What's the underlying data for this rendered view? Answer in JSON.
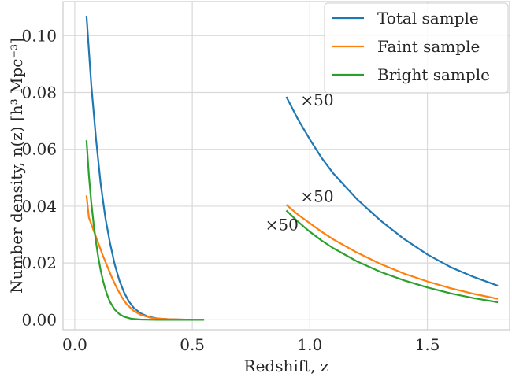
{
  "chart_data": {
    "type": "line",
    "title": "",
    "xlabel": "Redshift, z",
    "ylabel": "Number density, n(z) [h³ Mpc⁻³]",
    "xlim": [
      -0.05,
      1.85
    ],
    "ylim": [
      -0.0035,
      0.112
    ],
    "x_ticks": [
      0.0,
      0.5,
      1.0,
      1.5
    ],
    "x_tick_labels": [
      "0.0",
      "0.5",
      "1.0",
      "1.5"
    ],
    "y_ticks": [
      0.0,
      0.02,
      0.04,
      0.06,
      0.08,
      0.1
    ],
    "y_tick_labels": [
      "0.00",
      "0.02",
      "0.04",
      "0.06",
      "0.08",
      "0.10"
    ],
    "grid": true,
    "legend_position": "top-right",
    "annotations": [
      {
        "text": "×50",
        "x": 0.96,
        "y": 0.0755
      },
      {
        "text": "×50",
        "x": 0.96,
        "y": 0.0415
      },
      {
        "text": "×50",
        "x": 0.81,
        "y": 0.0315
      }
    ],
    "series": [
      {
        "name": "Total sample",
        "color": "#1f77b4",
        "segments": [
          {
            "x": [
              0.05,
              0.07,
              0.09,
              0.11,
              0.13,
              0.15,
              0.17,
              0.19,
              0.21,
              0.23,
              0.25,
              0.28,
              0.31,
              0.35,
              0.4,
              0.45,
              0.5,
              0.55
            ],
            "y": [
              0.107,
              0.083,
              0.064,
              0.048,
              0.036,
              0.027,
              0.0195,
              0.0138,
              0.0096,
              0.0065,
              0.0043,
              0.0023,
              0.0012,
              0.0005,
              0.0002,
              0.0001,
              0.0,
              0.0
            ]
          },
          {
            "x": [
              0.9,
              0.95,
              1.0,
              1.05,
              1.1,
              1.2,
              1.3,
              1.4,
              1.5,
              1.6,
              1.7,
              1.8
            ],
            "y": [
              0.0785,
              0.0705,
              0.0635,
              0.057,
              0.0515,
              0.0425,
              0.035,
              0.0285,
              0.023,
              0.0185,
              0.015,
              0.012
            ]
          }
        ]
      },
      {
        "name": "Faint sample",
        "color": "#ff7f0e",
        "segments": [
          {
            "x": [
              0.05,
              0.06,
              0.08,
              0.1,
              0.12,
              0.14,
              0.16,
              0.18,
              0.2,
              0.22,
              0.25,
              0.28,
              0.32,
              0.36,
              0.4,
              0.45,
              0.5,
              0.55
            ],
            "y": [
              0.0438,
              0.036,
              0.0315,
              0.027,
              0.0225,
              0.0185,
              0.0145,
              0.011,
              0.008,
              0.0056,
              0.0032,
              0.0018,
              0.0008,
              0.0004,
              0.0002,
              0.0001,
              0.0,
              0.0
            ]
          },
          {
            "x": [
              0.9,
              0.95,
              1.0,
              1.05,
              1.1,
              1.2,
              1.3,
              1.4,
              1.5,
              1.6,
              1.7,
              1.8
            ],
            "y": [
              0.0405,
              0.037,
              0.034,
              0.031,
              0.0283,
              0.0237,
              0.0197,
              0.0163,
              0.0135,
              0.0111,
              0.0091,
              0.0074
            ]
          }
        ]
      },
      {
        "name": "Bright sample",
        "color": "#2ca02c",
        "segments": [
          {
            "x": [
              0.05,
              0.06,
              0.07,
              0.08,
              0.09,
              0.1,
              0.11,
              0.12,
              0.13,
              0.14,
              0.15,
              0.17,
              0.19,
              0.21,
              0.24,
              0.28,
              0.35,
              0.45,
              0.55
            ],
            "y": [
              0.0632,
              0.051,
              0.0415,
              0.034,
              0.0275,
              0.022,
              0.0175,
              0.0138,
              0.0108,
              0.0083,
              0.0063,
              0.0036,
              0.002,
              0.0011,
              0.0004,
              0.0001,
              0.0,
              0.0,
              0.0
            ]
          },
          {
            "x": [
              0.9,
              0.95,
              1.0,
              1.05,
              1.1,
              1.2,
              1.3,
              1.4,
              1.5,
              1.6,
              1.7,
              1.8
            ],
            "y": [
              0.0385,
              0.0345,
              0.031,
              0.0279,
              0.0252,
              0.0206,
              0.0169,
              0.0139,
              0.0114,
              0.0093,
              0.0076,
              0.0062
            ]
          }
        ]
      }
    ]
  }
}
